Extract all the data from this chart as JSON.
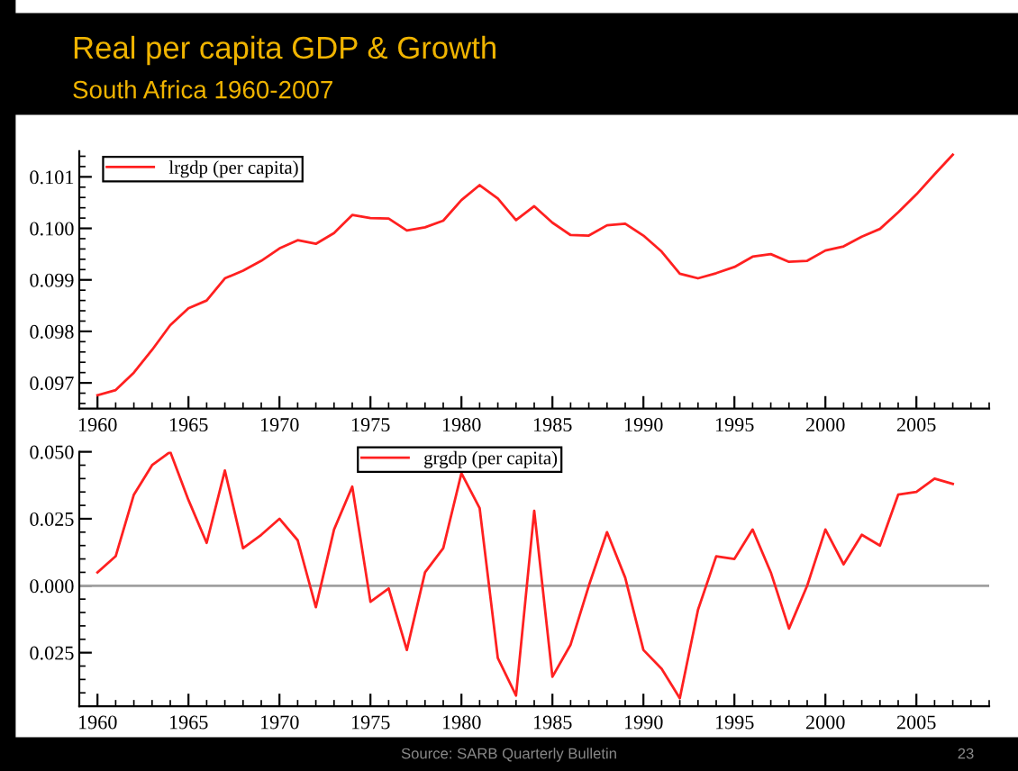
{
  "chart_data": [
    {
      "type": "line",
      "title": "Real per capita GDP & Growth",
      "subtitle": "South Africa 1960-2007",
      "x": [
        1960,
        1961,
        1962,
        1963,
        1964,
        1965,
        1966,
        1967,
        1968,
        1969,
        1970,
        1971,
        1972,
        1973,
        1974,
        1975,
        1976,
        1977,
        1978,
        1979,
        1980,
        1981,
        1982,
        1983,
        1984,
        1985,
        1986,
        1987,
        1988,
        1989,
        1990,
        1991,
        1992,
        1993,
        1994,
        1995,
        1996,
        1997,
        1998,
        1999,
        2000,
        2001,
        2002,
        2003,
        2004,
        2005,
        2006,
        2007
      ],
      "series": [
        {
          "name": "lrgdp (per capita)",
          "color": "#ff2020",
          "values": [
            0.09676,
            0.09686,
            0.0972,
            0.09764,
            0.09812,
            0.09845,
            0.0986,
            0.09903,
            0.09918,
            0.09937,
            0.09961,
            0.09977,
            0.0997,
            0.09991,
            0.10026,
            0.1002,
            0.10019,
            0.09996,
            0.10002,
            0.10015,
            0.10055,
            0.10084,
            0.10058,
            0.10016,
            0.10043,
            0.10011,
            0.09987,
            0.09986,
            0.10006,
            0.10009,
            0.09986,
            0.09955,
            0.09912,
            0.09903,
            0.09913,
            0.09925,
            0.09945,
            0.0995,
            0.09935,
            0.09937,
            0.09957,
            0.09965,
            0.09984,
            0.09999,
            0.10031,
            0.10066,
            0.10105,
            0.10143
          ]
        }
      ],
      "xlim": [
        1959,
        2009
      ],
      "xticks": [
        1960,
        1965,
        1970,
        1975,
        1980,
        1985,
        1990,
        1995,
        2000,
        2005
      ],
      "ylim": [
        0.0965,
        0.1015
      ],
      "yticks": [
        {
          "value": 0.097,
          "label": "0.097"
        },
        {
          "value": 0.098,
          "label": "0.098"
        },
        {
          "value": 0.099,
          "label": "0.099"
        },
        {
          "value": 0.1,
          "label": "0.100"
        },
        {
          "value": 0.101,
          "label": "0.101"
        }
      ],
      "legend": "top left",
      "grid": false,
      "marker": "none",
      "line_style": "solid"
    },
    {
      "type": "line",
      "x": [
        1960,
        1961,
        1962,
        1963,
        1964,
        1965,
        1966,
        1967,
        1968,
        1969,
        1970,
        1971,
        1972,
        1973,
        1974,
        1975,
        1976,
        1977,
        1978,
        1979,
        1980,
        1981,
        1982,
        1983,
        1984,
        1985,
        1986,
        1987,
        1988,
        1989,
        1990,
        1991,
        1992,
        1993,
        1994,
        1995,
        1996,
        1997,
        1998,
        1999,
        2000,
        2001,
        2002,
        2003,
        2004,
        2005,
        2006,
        2007
      ],
      "series": [
        {
          "name": "grgdp (per capita)",
          "color": "#ff2020",
          "values": [
            0.005,
            0.011,
            0.034,
            0.045,
            0.05,
            0.032,
            0.016,
            0.043,
            0.014,
            0.019,
            0.025,
            0.017,
            -0.008,
            0.021,
            0.037,
            -0.006,
            -0.001,
            -0.024,
            0.005,
            0.014,
            0.042,
            0.029,
            -0.027,
            -0.041,
            0.028,
            -0.034,
            -0.022,
            0.0,
            0.02,
            0.003,
            -0.024,
            -0.031,
            -0.042,
            -0.009,
            0.011,
            0.01,
            0.021,
            0.005,
            -0.016,
            0.0,
            0.021,
            0.008,
            0.019,
            0.015,
            0.034,
            0.035,
            0.04,
            0.038
          ]
        }
      ],
      "xlim": [
        1959,
        2009
      ],
      "xticks": [
        1960,
        1965,
        1970,
        1975,
        1980,
        1985,
        1990,
        1995,
        2000,
        2005
      ],
      "ylim": [
        -0.045,
        0.05
      ],
      "yticks": [
        {
          "value": -0.025,
          "label": "0.025"
        },
        {
          "value": 0,
          "label": "0.000"
        },
        {
          "value": 0.025,
          "label": "0.025"
        },
        {
          "value": 0.05,
          "label": "0.050"
        }
      ],
      "ref_lines": [
        {
          "axis": "y",
          "value": 0,
          "color": "#a0a0a0"
        }
      ],
      "annotations": [
        "Source: SARB Quarterly Bulletin",
        "23"
      ],
      "legend": "top left",
      "grid": false,
      "marker": "none",
      "line_style": "solid"
    }
  ]
}
